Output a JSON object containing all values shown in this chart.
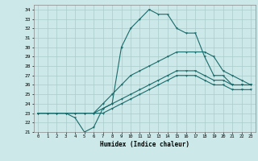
{
  "xlabel": "Humidex (Indice chaleur)",
  "ylabel": "",
  "bg_color": "#cce8e8",
  "line_color": "#1a6b6b",
  "grid_color": "#aacccc",
  "xlim": [
    -0.5,
    23.5
  ],
  "ylim": [
    21,
    34.5
  ],
  "yticks": [
    21,
    22,
    23,
    24,
    25,
    26,
    27,
    28,
    29,
    30,
    31,
    32,
    33,
    34
  ],
  "xticks": [
    0,
    1,
    2,
    3,
    4,
    5,
    6,
    7,
    8,
    9,
    10,
    11,
    12,
    13,
    14,
    15,
    16,
    17,
    18,
    19,
    20,
    21,
    22,
    23
  ],
  "series": [
    [
      23.0,
      23.0,
      23.0,
      23.0,
      22.5,
      21.0,
      21.5,
      23.5,
      24.0,
      30.0,
      32.0,
      33.0,
      34.0,
      33.5,
      33.5,
      32.0,
      31.5,
      31.5,
      29.0,
      27.0,
      27.0,
      26.0,
      26.0,
      26.0
    ],
    [
      23.0,
      23.0,
      23.0,
      23.0,
      23.0,
      23.0,
      23.0,
      24.0,
      25.0,
      26.0,
      27.0,
      27.5,
      28.0,
      28.5,
      29.0,
      29.5,
      29.5,
      29.5,
      29.5,
      29.0,
      27.5,
      27.0,
      26.5,
      26.0
    ],
    [
      23.0,
      23.0,
      23.0,
      23.0,
      23.0,
      23.0,
      23.0,
      23.5,
      24.0,
      24.5,
      25.0,
      25.5,
      26.0,
      26.5,
      27.0,
      27.5,
      27.5,
      27.5,
      27.0,
      26.5,
      26.5,
      26.0,
      26.0,
      26.0
    ],
    [
      23.0,
      23.0,
      23.0,
      23.0,
      23.0,
      23.0,
      23.0,
      23.0,
      23.5,
      24.0,
      24.5,
      25.0,
      25.5,
      26.0,
      26.5,
      27.0,
      27.0,
      27.0,
      26.5,
      26.0,
      26.0,
      25.5,
      25.5,
      25.5
    ]
  ]
}
